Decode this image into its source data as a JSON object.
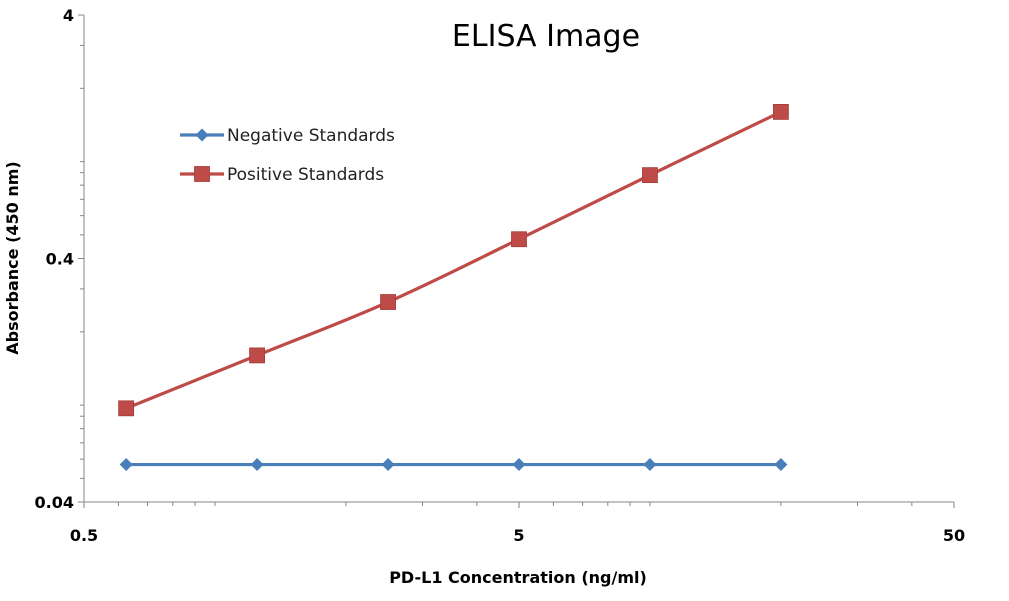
{
  "chart_data": {
    "type": "line",
    "title": "ELISA Image",
    "xlabel": "PD-L1 Concentration  (ng/ml)",
    "ylabel": "Absorbance (450 nm)",
    "x_scale": "log",
    "y_scale": "log",
    "xlim": [
      0.5,
      50
    ],
    "ylim": [
      0.04,
      4
    ],
    "x_ticks": [
      {
        "value": 0.5,
        "label": "0.5"
      },
      {
        "value": 5,
        "label": "5"
      },
      {
        "value": 50,
        "label": "50"
      }
    ],
    "y_ticks": [
      {
        "value": 0.04,
        "label": "0.04"
      },
      {
        "value": 0.4,
        "label": "0.4"
      },
      {
        "value": 4,
        "label": "4"
      }
    ],
    "x": [
      0.625,
      1.25,
      2.5,
      5,
      10,
      20
    ],
    "series": [
      {
        "name": "Negative Standards",
        "color": "#4a7ebb",
        "marker": "diamond",
        "values": [
          0.057,
          0.057,
          0.057,
          0.057,
          0.057,
          0.057
        ]
      },
      {
        "name": "Positive Standards",
        "color": "#be4b48",
        "marker": "square",
        "values": [
          0.097,
          0.16,
          0.265,
          0.48,
          0.88,
          1.6
        ]
      }
    ],
    "legend": {
      "placement": "top-left"
    },
    "grid": false
  }
}
